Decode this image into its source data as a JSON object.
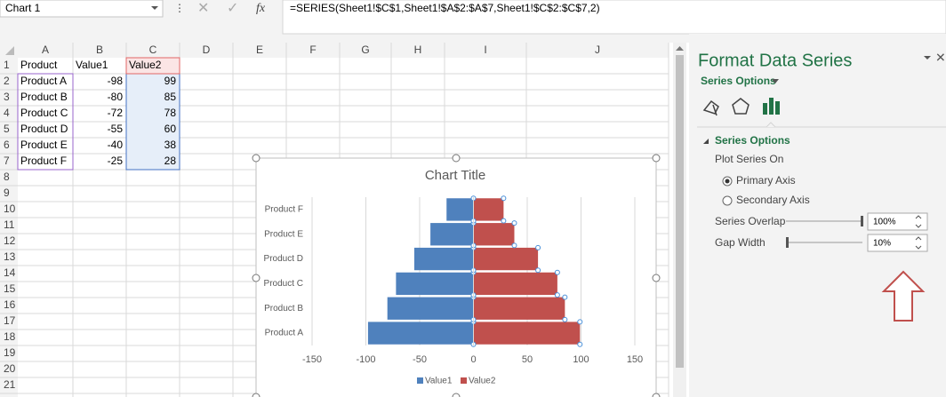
{
  "name_box": "Chart 1",
  "formula": "=SERIES(Sheet1!$C$1,Sheet1!$A$2:$A$7,Sheet1!$C$2:$C$7,2)",
  "columns": [
    "A",
    "B",
    "C",
    "D",
    "E",
    "F",
    "G",
    "H",
    "I",
    "J"
  ],
  "row_numbers": [
    1,
    2,
    3,
    4,
    5,
    6,
    7,
    8,
    9,
    10,
    11,
    12,
    13,
    14,
    15,
    16,
    17,
    18,
    19,
    20,
    21
  ],
  "sheet": {
    "rows": [
      [
        "Product",
        "Value1",
        "Value2"
      ],
      [
        "Product A",
        -98,
        99
      ],
      [
        "Product B",
        -80,
        85
      ],
      [
        "Product C",
        -72,
        78
      ],
      [
        "Product D",
        -55,
        60
      ],
      [
        "Product E",
        -40,
        38
      ],
      [
        "Product F",
        -25,
        28
      ]
    ]
  },
  "chart_data": {
    "type": "bar",
    "orientation": "horizontal",
    "title": "Chart Title",
    "categories": [
      "Product A",
      "Product B",
      "Product C",
      "Product D",
      "Product E",
      "Product F"
    ],
    "series": [
      {
        "name": "Value1",
        "color": "#4f81bd",
        "values": [
          -98,
          -80,
          -72,
          -55,
          -40,
          -25
        ]
      },
      {
        "name": "Value2",
        "color": "#c0504d",
        "values": [
          99,
          85,
          78,
          60,
          38,
          28
        ]
      }
    ],
    "xlim": [
      -150,
      150
    ],
    "xticks": [
      -150,
      -100,
      -50,
      0,
      50,
      100,
      150
    ],
    "grid": true,
    "legend": "bottom"
  },
  "panel": {
    "title": "Format Data Series",
    "menu": "Series Options",
    "section": "Series Options",
    "plot_series_on": "Plot Series On",
    "options": [
      "Primary Axis",
      "Secondary Axis"
    ],
    "series_overlap": {
      "label": "Series Overlap",
      "value": "100%"
    },
    "gap_width": {
      "label": "Gap Width",
      "value": "10%"
    }
  }
}
